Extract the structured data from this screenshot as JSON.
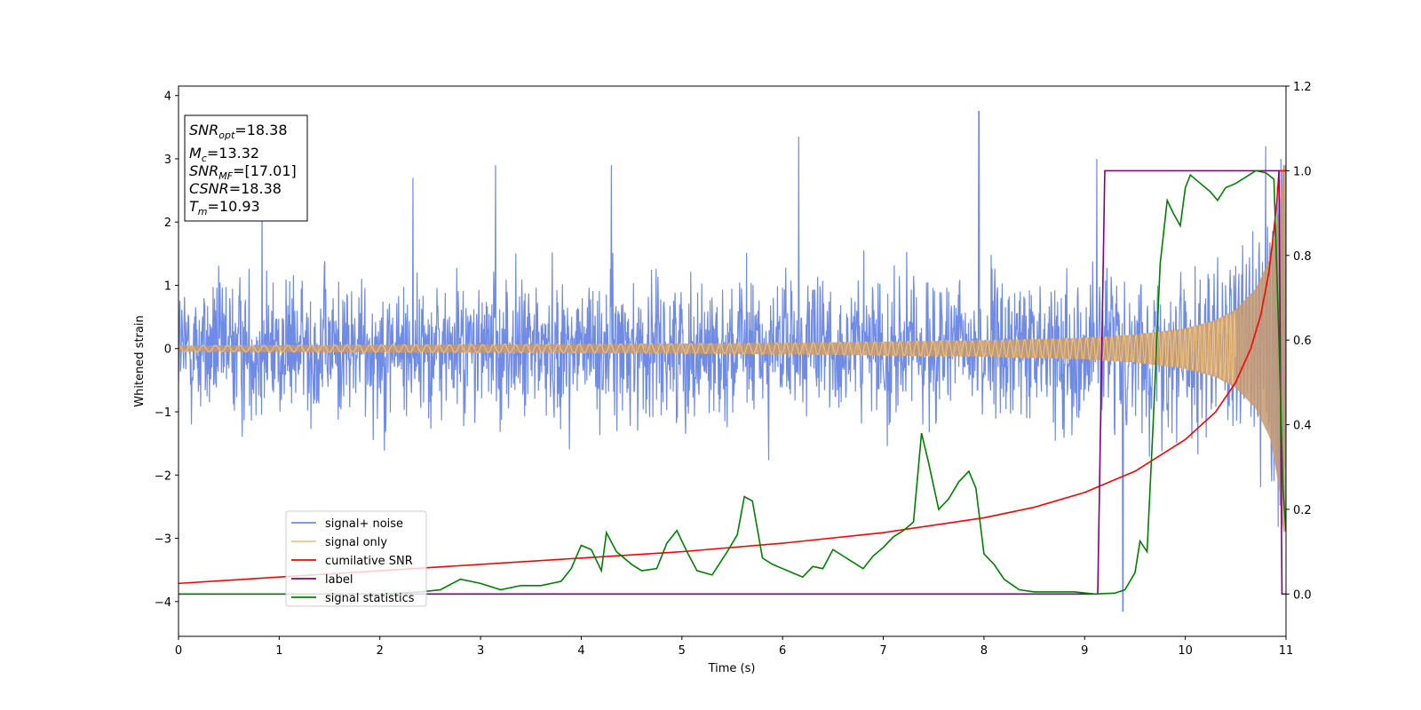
{
  "chart_data": {
    "type": "line",
    "xlabel": "Time (s)",
    "ylabel": "Whitened strain",
    "xlim": [
      0,
      11
    ],
    "ylim_left": [
      -4.55,
      4.15
    ],
    "ylim_right": [
      -0.1,
      1.2
    ],
    "x_ticks": [
      0,
      1,
      2,
      3,
      4,
      5,
      6,
      7,
      8,
      9,
      10,
      11
    ],
    "y_ticks_left": [
      -4,
      -3,
      -2,
      -1,
      0,
      1,
      2,
      3,
      4
    ],
    "y_ticks_right": [
      "0.0",
      "0.2",
      "0.4",
      "0.6",
      "0.8",
      "1.0",
      "1.2"
    ],
    "grid": false,
    "legend_position": "lower-left",
    "colors": {
      "signal_noise": "#6f8be6",
      "signal_only": "#f5c57a",
      "signal_fill": "#c69a6e",
      "cumulative_snr": "#ff0000",
      "label": "#800080",
      "signal_statistics": "#008000"
    },
    "series": [
      {
        "name": "signal+ noise",
        "axis": "left",
        "description": "noisy whitened strain, amplitude roughly within -2.5..3.0, peak 3.75 near t=7.95, minimum -4.15 near t=9.38",
        "noise_spikes": [
          [
            0.83,
            2.5
          ],
          [
            2.33,
            2.7
          ],
          [
            3.15,
            2.9
          ],
          [
            4.3,
            2.9
          ],
          [
            6.16,
            3.35
          ],
          [
            7.95,
            3.75
          ],
          [
            9.12,
            3.0
          ],
          [
            9.38,
            -4.15
          ],
          [
            10.8,
            3.2
          ],
          [
            10.95,
            3.0
          ]
        ]
      },
      {
        "name": "signal only",
        "axis": "left",
        "description": "chirp waveform with amplitude growing towards merger",
        "envelope": [
          [
            0,
            0.05
          ],
          [
            2,
            0.06
          ],
          [
            4,
            0.07
          ],
          [
            6,
            0.09
          ],
          [
            8,
            0.13
          ],
          [
            9,
            0.17
          ],
          [
            9.5,
            0.22
          ],
          [
            10,
            0.32
          ],
          [
            10.3,
            0.45
          ],
          [
            10.5,
            0.62
          ],
          [
            10.7,
            0.95
          ],
          [
            10.85,
            1.45
          ],
          [
            10.93,
            2.2
          ],
          [
            10.97,
            2.9
          ]
        ]
      },
      {
        "name": "cumilative SNR",
        "axis": "right",
        "points": [
          [
            0,
            0.025
          ],
          [
            1,
            0.04
          ],
          [
            2,
            0.055
          ],
          [
            3,
            0.07
          ],
          [
            4,
            0.085
          ],
          [
            5,
            0.1
          ],
          [
            6,
            0.12
          ],
          [
            7,
            0.145
          ],
          [
            8,
            0.18
          ],
          [
            8.5,
            0.205
          ],
          [
            9,
            0.24
          ],
          [
            9.5,
            0.29
          ],
          [
            10,
            0.365
          ],
          [
            10.3,
            0.43
          ],
          [
            10.5,
            0.5
          ],
          [
            10.65,
            0.58
          ],
          [
            10.75,
            0.66
          ],
          [
            10.83,
            0.76
          ],
          [
            10.88,
            0.86
          ],
          [
            10.91,
            0.93
          ],
          [
            10.93,
            1.0
          ],
          [
            11,
            1.0
          ]
        ]
      },
      {
        "name": "label",
        "axis": "right",
        "points": [
          [
            0,
            0.0
          ],
          [
            9.13,
            0.0
          ],
          [
            9.2,
            1.0
          ],
          [
            10.93,
            1.0
          ],
          [
            10.96,
            0.0
          ],
          [
            11,
            0.0
          ]
        ]
      },
      {
        "name": "signal statistics",
        "axis": "right",
        "points": [
          [
            0,
            0.0
          ],
          [
            0.5,
            0.0
          ],
          [
            1,
            0.0
          ],
          [
            1.5,
            0.0
          ],
          [
            2,
            0.0
          ],
          [
            2.4,
            0.005
          ],
          [
            2.6,
            0.01
          ],
          [
            2.8,
            0.035
          ],
          [
            3.0,
            0.025
          ],
          [
            3.2,
            0.01
          ],
          [
            3.4,
            0.02
          ],
          [
            3.6,
            0.02
          ],
          [
            3.8,
            0.03
          ],
          [
            3.9,
            0.06
          ],
          [
            4.0,
            0.115
          ],
          [
            4.1,
            0.105
          ],
          [
            4.2,
            0.055
          ],
          [
            4.25,
            0.145
          ],
          [
            4.35,
            0.1
          ],
          [
            4.5,
            0.07
          ],
          [
            4.6,
            0.055
          ],
          [
            4.75,
            0.06
          ],
          [
            4.85,
            0.12
          ],
          [
            4.95,
            0.15
          ],
          [
            5.05,
            0.1
          ],
          [
            5.15,
            0.055
          ],
          [
            5.3,
            0.045
          ],
          [
            5.45,
            0.1
          ],
          [
            5.55,
            0.14
          ],
          [
            5.62,
            0.23
          ],
          [
            5.7,
            0.22
          ],
          [
            5.8,
            0.085
          ],
          [
            5.9,
            0.07
          ],
          [
            6.0,
            0.06
          ],
          [
            6.1,
            0.05
          ],
          [
            6.2,
            0.04
          ],
          [
            6.3,
            0.065
          ],
          [
            6.4,
            0.06
          ],
          [
            6.5,
            0.105
          ],
          [
            6.6,
            0.09
          ],
          [
            6.7,
            0.075
          ],
          [
            6.8,
            0.06
          ],
          [
            6.9,
            0.09
          ],
          [
            7.0,
            0.11
          ],
          [
            7.1,
            0.135
          ],
          [
            7.2,
            0.15
          ],
          [
            7.3,
            0.17
          ],
          [
            7.38,
            0.38
          ],
          [
            7.45,
            0.31
          ],
          [
            7.55,
            0.2
          ],
          [
            7.65,
            0.225
          ],
          [
            7.75,
            0.265
          ],
          [
            7.85,
            0.29
          ],
          [
            7.92,
            0.25
          ],
          [
            8.0,
            0.095
          ],
          [
            8.1,
            0.07
          ],
          [
            8.2,
            0.035
          ],
          [
            8.35,
            0.01
          ],
          [
            8.5,
            0.005
          ],
          [
            8.7,
            0.005
          ],
          [
            8.9,
            0.005
          ],
          [
            9.1,
            0.0
          ],
          [
            9.3,
            0.002
          ],
          [
            9.4,
            0.01
          ],
          [
            9.5,
            0.05
          ],
          [
            9.55,
            0.125
          ],
          [
            9.62,
            0.1
          ],
          [
            9.68,
            0.4
          ],
          [
            9.75,
            0.78
          ],
          [
            9.82,
            0.93
          ],
          [
            9.88,
            0.9
          ],
          [
            9.95,
            0.87
          ],
          [
            10.0,
            0.96
          ],
          [
            10.05,
            0.99
          ],
          [
            10.15,
            0.97
          ],
          [
            10.25,
            0.95
          ],
          [
            10.32,
            0.93
          ],
          [
            10.4,
            0.96
          ],
          [
            10.5,
            0.97
          ],
          [
            10.6,
            0.985
          ],
          [
            10.7,
            1.0
          ],
          [
            10.8,
            0.995
          ],
          [
            10.88,
            0.98
          ],
          [
            10.93,
            0.6
          ],
          [
            10.97,
            0.25
          ],
          [
            11,
            0.15
          ]
        ]
      }
    ],
    "annotation": {
      "lines": [
        {
          "sym": "SNR",
          "sub": "opt",
          "value": "=18.38"
        },
        {
          "sym": "M",
          "sub": "c",
          "value": "=13.32"
        },
        {
          "sym": "SNR",
          "sub": "MF",
          "value": "=[17.01]"
        },
        {
          "sym": "CSNR",
          "sub": "",
          "value": "=18.38"
        },
        {
          "sym": "T",
          "sub": "m",
          "value": "=10.93"
        }
      ]
    }
  }
}
